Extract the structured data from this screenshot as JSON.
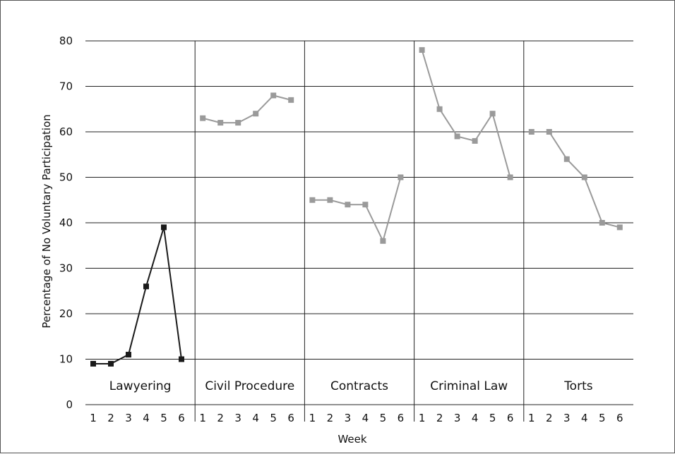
{
  "chart_data": {
    "type": "line",
    "title": "",
    "xlabel": "Week",
    "ylabel": "Percentage of No Voluntary Participation",
    "ylim": [
      0,
      80
    ],
    "yticks": [
      "0",
      "10",
      "20",
      "30",
      "40",
      "50",
      "60",
      "70",
      "80"
    ],
    "week_ticks": [
      "1",
      "2",
      "3",
      "4",
      "5",
      "6"
    ],
    "grid": true,
    "panels": [
      {
        "name": "Lawyering",
        "color": "#1a1a1a",
        "values": [
          9,
          9,
          11,
          26,
          39,
          10
        ]
      },
      {
        "name": "Civil Procedure",
        "color": "#9a9a9a",
        "values": [
          63,
          62,
          62,
          64,
          68,
          67
        ]
      },
      {
        "name": "Contracts",
        "color": "#9a9a9a",
        "values": [
          45,
          45,
          44,
          44,
          36,
          50
        ]
      },
      {
        "name": "Criminal Law",
        "color": "#9a9a9a",
        "values": [
          78,
          65,
          59,
          58,
          64,
          50
        ]
      },
      {
        "name": "Torts",
        "color": "#9a9a9a",
        "values": [
          60,
          60,
          54,
          50,
          40,
          39
        ]
      }
    ]
  }
}
